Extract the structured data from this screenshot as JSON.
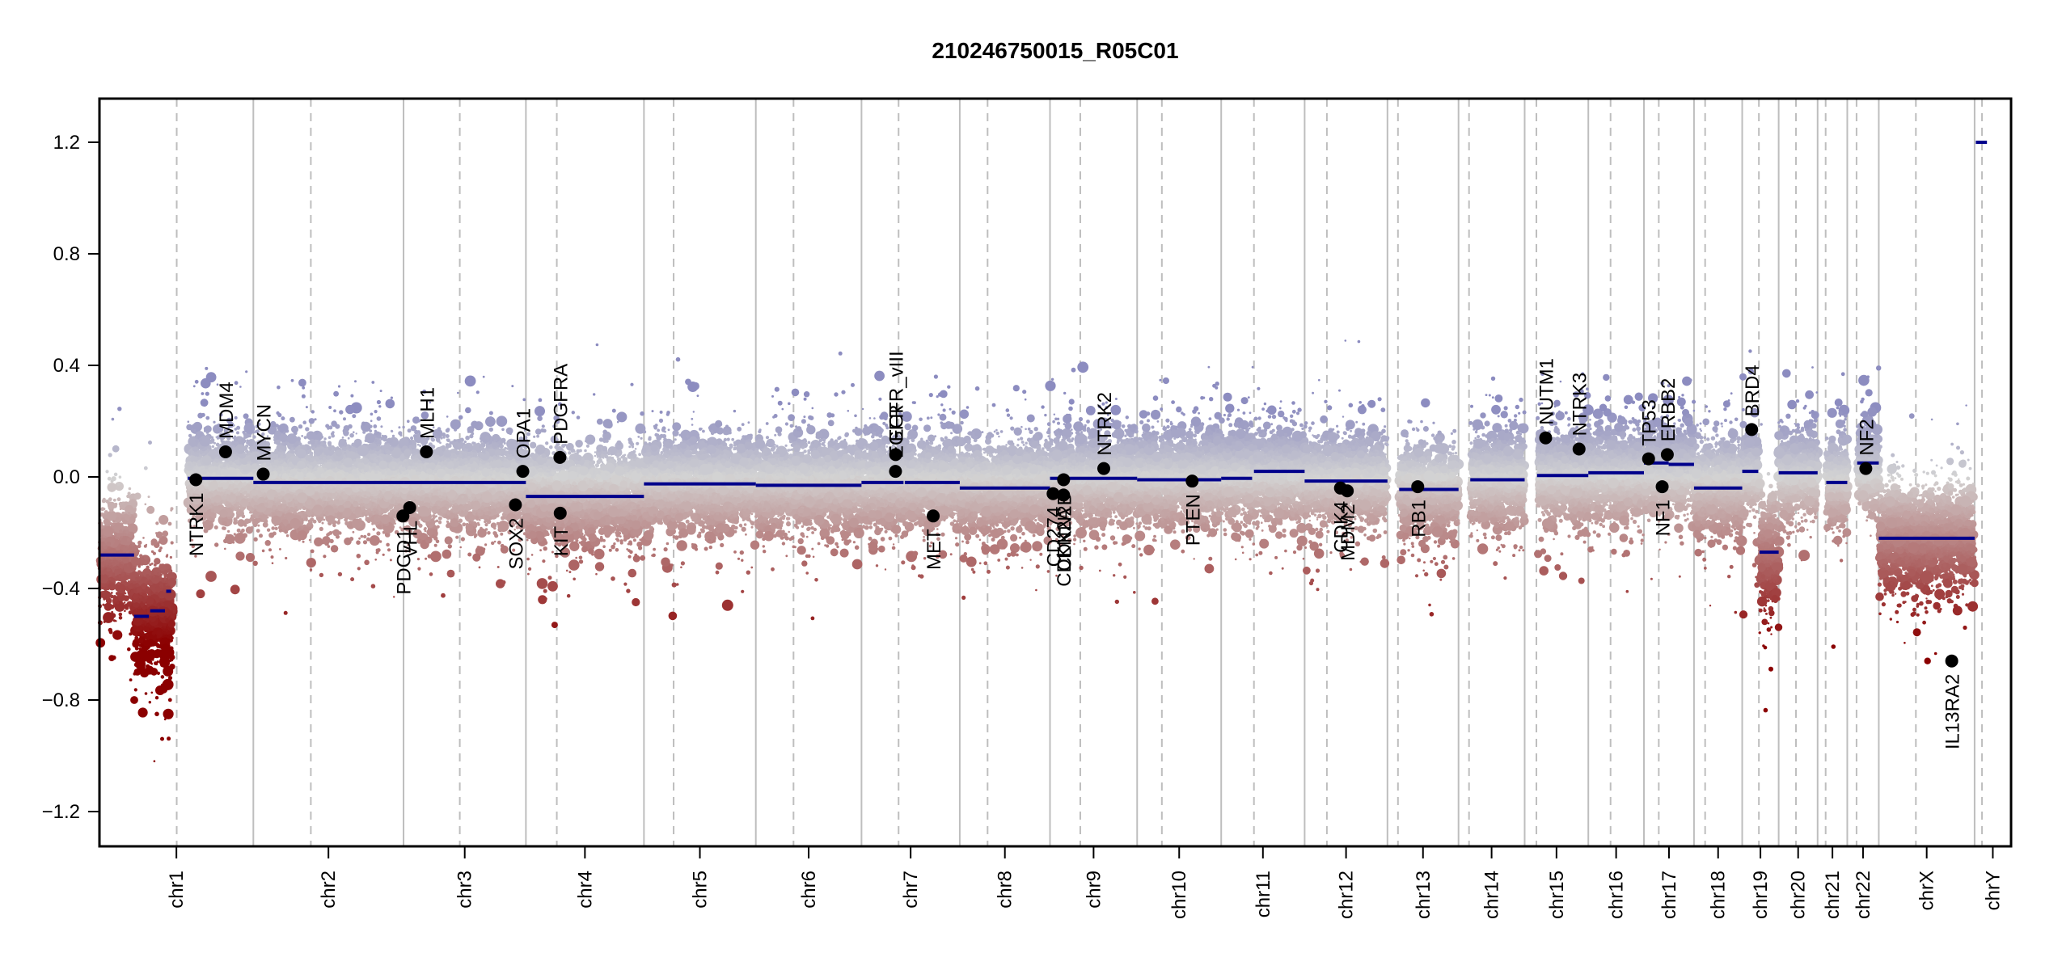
{
  "chart_data": {
    "type": "scatter",
    "title": "210246750015_R05C01",
    "xlabel": "",
    "ylabel": "",
    "ylim": [
      -1.35,
      1.3
    ],
    "yticks": [
      {
        "value": 1.2,
        "label": "1.2"
      },
      {
        "value": 0.8,
        "label": "0.8"
      },
      {
        "value": 0.4,
        "label": "0.4"
      },
      {
        "value": 0.0,
        "label": "0.0"
      },
      {
        "value": -0.4,
        "label": "−0.4"
      },
      {
        "value": -0.8,
        "label": "−0.8"
      },
      {
        "value": -1.2,
        "label": "−1.2"
      }
    ],
    "grid": false,
    "colors": {
      "gain": "#8c8cc0",
      "neutral": "#d3d3d3",
      "loss": "#8b0000",
      "segment": "#00008b",
      "gene": "#000000",
      "chr_boundary": "#bebebe",
      "centromere": "#bebebe"
    },
    "chromosomes": [
      {
        "name": "chr1",
        "size_mb": 249,
        "centromere_mb": 125
      },
      {
        "name": "chr2",
        "size_mb": 243,
        "centromere_mb": 93
      },
      {
        "name": "chr3",
        "size_mb": 198,
        "centromere_mb": 91
      },
      {
        "name": "chr4",
        "size_mb": 191,
        "centromere_mb": 50
      },
      {
        "name": "chr5",
        "size_mb": 181,
        "centromere_mb": 48
      },
      {
        "name": "chr6",
        "size_mb": 171,
        "centromere_mb": 61
      },
      {
        "name": "chr7",
        "size_mb": 159,
        "centromere_mb": 60
      },
      {
        "name": "chr8",
        "size_mb": 146,
        "centromere_mb": 45
      },
      {
        "name": "chr9",
        "size_mb": 141,
        "centromere_mb": 49
      },
      {
        "name": "chr10",
        "size_mb": 136,
        "centromere_mb": 40
      },
      {
        "name": "chr11",
        "size_mb": 135,
        "centromere_mb": 53
      },
      {
        "name": "chr12",
        "size_mb": 134,
        "centromere_mb": 36
      },
      {
        "name": "chr13",
        "size_mb": 115,
        "centromere_mb": 17
      },
      {
        "name": "chr14",
        "size_mb": 107,
        "centromere_mb": 17
      },
      {
        "name": "chr15",
        "size_mb": 103,
        "centromere_mb": 19
      },
      {
        "name": "chr16",
        "size_mb": 90,
        "centromere_mb": 36
      },
      {
        "name": "chr17",
        "size_mb": 81,
        "centromere_mb": 24
      },
      {
        "name": "chr18",
        "size_mb": 78,
        "centromere_mb": 18
      },
      {
        "name": "chr19",
        "size_mb": 59,
        "centromere_mb": 27
      },
      {
        "name": "chr20",
        "size_mb": 63,
        "centromere_mb": 28
      },
      {
        "name": "chr21",
        "size_mb": 48,
        "centromere_mb": 13
      },
      {
        "name": "chr22",
        "size_mb": 51,
        "centromere_mb": 15
      },
      {
        "name": "chrX",
        "size_mb": 155,
        "centromere_mb": 60
      },
      {
        "name": "chrY",
        "size_mb": 59,
        "centromere_mb": 12
      }
    ],
    "segments": [
      {
        "chr": "chr1",
        "start_mb": 0,
        "end_mb": 56,
        "value": -0.28
      },
      {
        "chr": "chr1",
        "start_mb": 56,
        "end_mb": 80,
        "value": -0.5
      },
      {
        "chr": "chr1",
        "start_mb": 82,
        "end_mb": 106,
        "value": -0.48
      },
      {
        "chr": "chr1",
        "start_mb": 108,
        "end_mb": 116,
        "value": -0.41
      },
      {
        "chr": "chr1",
        "start_mb": 143,
        "end_mb": 249,
        "value": -0.005
      },
      {
        "chr": "chr2",
        "start_mb": 0,
        "end_mb": 243,
        "value": -0.02
      },
      {
        "chr": "chr3",
        "start_mb": 0,
        "end_mb": 198,
        "value": -0.02
      },
      {
        "chr": "chr4",
        "start_mb": 0,
        "end_mb": 191,
        "value": -0.07
      },
      {
        "chr": "chr5",
        "start_mb": 0,
        "end_mb": 181,
        "value": -0.025
      },
      {
        "chr": "chr6",
        "start_mb": 0,
        "end_mb": 171,
        "value": -0.03
      },
      {
        "chr": "chr7",
        "start_mb": 0,
        "end_mb": 68,
        "value": -0.02
      },
      {
        "chr": "chr7",
        "start_mb": 70,
        "end_mb": 159,
        "value": -0.02
      },
      {
        "chr": "chr8",
        "start_mb": 0,
        "end_mb": 146,
        "value": -0.04
      },
      {
        "chr": "chr9",
        "start_mb": 0,
        "end_mb": 141,
        "value": -0.005
      },
      {
        "chr": "chr10",
        "start_mb": 0,
        "end_mb": 136,
        "value": -0.01
      },
      {
        "chr": "chr11",
        "start_mb": 0,
        "end_mb": 50,
        "value": -0.005
      },
      {
        "chr": "chr11",
        "start_mb": 53,
        "end_mb": 135,
        "value": 0.02
      },
      {
        "chr": "chr12",
        "start_mb": 0,
        "end_mb": 134,
        "value": -0.015
      },
      {
        "chr": "chr13",
        "start_mb": 19,
        "end_mb": 115,
        "value": -0.045
      },
      {
        "chr": "chr14",
        "start_mb": 19,
        "end_mb": 107,
        "value": -0.01
      },
      {
        "chr": "chr15",
        "start_mb": 20,
        "end_mb": 103,
        "value": 0.005
      },
      {
        "chr": "chr16",
        "start_mb": 0,
        "end_mb": 90,
        "value": 0.015
      },
      {
        "chr": "chr17",
        "start_mb": 0,
        "end_mb": 40,
        "value": 0.05
      },
      {
        "chr": "chr17",
        "start_mb": 40,
        "end_mb": 81,
        "value": 0.045
      },
      {
        "chr": "chr18",
        "start_mb": 0,
        "end_mb": 78,
        "value": -0.04
      },
      {
        "chr": "chr19",
        "start_mb": 0,
        "end_mb": 26,
        "value": 0.02
      },
      {
        "chr": "chr19",
        "start_mb": 28,
        "end_mb": 59,
        "value": -0.27
      },
      {
        "chr": "chr20",
        "start_mb": 0,
        "end_mb": 63,
        "value": 0.015
      },
      {
        "chr": "chr21",
        "start_mb": 14,
        "end_mb": 48,
        "value": -0.02
      },
      {
        "chr": "chr22",
        "start_mb": 16,
        "end_mb": 51,
        "value": 0.05
      },
      {
        "chr": "chrX",
        "start_mb": 0,
        "end_mb": 155,
        "value": -0.22
      },
      {
        "chr": "chrY",
        "start_mb": 2,
        "end_mb": 20,
        "value": 1.2
      }
    ],
    "probe_clouds": [
      {
        "chr": "chr1",
        "start_mb": 0,
        "end_mb": 56,
        "center": -0.28,
        "spread": 0.16
      },
      {
        "chr": "chr1",
        "start_mb": 56,
        "end_mb": 118,
        "center": -0.49,
        "spread": 0.18
      },
      {
        "chr": "chr1",
        "start_mb": 143,
        "end_mb": 249,
        "center": 0.0,
        "spread": 0.13
      },
      {
        "chr": "chr2",
        "start_mb": 0,
        "end_mb": 243,
        "center": -0.02,
        "spread": 0.13
      },
      {
        "chr": "chr3",
        "start_mb": 0,
        "end_mb": 198,
        "center": -0.02,
        "spread": 0.13
      },
      {
        "chr": "chr4",
        "start_mb": 0,
        "end_mb": 191,
        "center": -0.07,
        "spread": 0.13
      },
      {
        "chr": "chr5",
        "start_mb": 0,
        "end_mb": 181,
        "center": -0.025,
        "spread": 0.13
      },
      {
        "chr": "chr6",
        "start_mb": 0,
        "end_mb": 171,
        "center": -0.03,
        "spread": 0.13
      },
      {
        "chr": "chr7",
        "start_mb": 0,
        "end_mb": 159,
        "center": -0.02,
        "spread": 0.13
      },
      {
        "chr": "chr8",
        "start_mb": 0,
        "end_mb": 146,
        "center": -0.04,
        "spread": 0.13
      },
      {
        "chr": "chr9",
        "start_mb": 0,
        "end_mb": 141,
        "center": -0.005,
        "spread": 0.13
      },
      {
        "chr": "chr10",
        "start_mb": 0,
        "end_mb": 136,
        "center": -0.01,
        "spread": 0.13
      },
      {
        "chr": "chr11",
        "start_mb": 0,
        "end_mb": 135,
        "center": 0.01,
        "spread": 0.13
      },
      {
        "chr": "chr12",
        "start_mb": 0,
        "end_mb": 134,
        "center": -0.015,
        "spread": 0.13
      },
      {
        "chr": "chr13",
        "start_mb": 19,
        "end_mb": 115,
        "center": -0.045,
        "spread": 0.13
      },
      {
        "chr": "chr14",
        "start_mb": 19,
        "end_mb": 107,
        "center": -0.01,
        "spread": 0.13
      },
      {
        "chr": "chr15",
        "start_mb": 20,
        "end_mb": 103,
        "center": 0.005,
        "spread": 0.13
      },
      {
        "chr": "chr16",
        "start_mb": 0,
        "end_mb": 90,
        "center": 0.015,
        "spread": 0.13
      },
      {
        "chr": "chr17",
        "start_mb": 0,
        "end_mb": 81,
        "center": 0.045,
        "spread": 0.13
      },
      {
        "chr": "chr18",
        "start_mb": 0,
        "end_mb": 78,
        "center": -0.04,
        "spread": 0.13
      },
      {
        "chr": "chr19",
        "start_mb": 0,
        "end_mb": 26,
        "center": 0.02,
        "spread": 0.13
      },
      {
        "chr": "chr19",
        "start_mb": 28,
        "end_mb": 59,
        "center": -0.27,
        "spread": 0.17
      },
      {
        "chr": "chr20",
        "start_mb": 0,
        "end_mb": 63,
        "center": 0.015,
        "spread": 0.13
      },
      {
        "chr": "chr21",
        "start_mb": 14,
        "end_mb": 48,
        "center": -0.02,
        "spread": 0.13
      },
      {
        "chr": "chr22",
        "start_mb": 16,
        "end_mb": 51,
        "center": 0.05,
        "spread": 0.13
      },
      {
        "chr": "chrX",
        "start_mb": 0,
        "end_mb": 155,
        "center": -0.22,
        "spread": 0.15
      }
    ],
    "genes": [
      {
        "name": "NTRK1",
        "chr": "chr1",
        "pos_mb": 156,
        "value": -0.01,
        "label_side": "below"
      },
      {
        "name": "MDM4",
        "chr": "chr1",
        "pos_mb": 204,
        "value": 0.09,
        "label_side": "above"
      },
      {
        "name": "MYCN",
        "chr": "chr2",
        "pos_mb": 16,
        "value": 0.01,
        "label_side": "above"
      },
      {
        "name": "PDCD1",
        "chr": "chr2",
        "pos_mb": 242,
        "value": -0.14,
        "label_side": "below"
      },
      {
        "name": "VHL",
        "chr": "chr3",
        "pos_mb": 10,
        "value": -0.11,
        "label_side": "below"
      },
      {
        "name": "MLH1",
        "chr": "chr3",
        "pos_mb": 37,
        "value": 0.09,
        "label_side": "above"
      },
      {
        "name": "SOX2",
        "chr": "chr3",
        "pos_mb": 181,
        "value": -0.1,
        "label_side": "below"
      },
      {
        "name": "OPA1",
        "chr": "chr3",
        "pos_mb": 193,
        "value": 0.02,
        "label_side": "above"
      },
      {
        "name": "PDGFRA",
        "chr": "chr4",
        "pos_mb": 55,
        "value": 0.07,
        "label_side": "above"
      },
      {
        "name": "KIT",
        "chr": "chr4",
        "pos_mb": 55.5,
        "value": -0.13,
        "label_side": "below"
      },
      {
        "name": "EGFR",
        "chr": "chr7",
        "pos_mb": 55,
        "value": 0.02,
        "label_side": "above"
      },
      {
        "name": "EGFR_vIII",
        "chr": "chr7",
        "pos_mb": 55.2,
        "value": 0.08,
        "label_side": "above"
      },
      {
        "name": "MET",
        "chr": "chr7",
        "pos_mb": 116,
        "value": -0.14,
        "label_side": "below"
      },
      {
        "name": "CD274",
        "chr": "chr9",
        "pos_mb": 5,
        "value": -0.06,
        "label_side": "below"
      },
      {
        "name": "CDKN2A",
        "chr": "chr9",
        "pos_mb": 21.9,
        "value": -0.065,
        "label_side": "below"
      },
      {
        "name": "CDKN2B",
        "chr": "chr9",
        "pos_mb": 22.0,
        "value": -0.01,
        "label_side": "below"
      },
      {
        "name": "NTRK2",
        "chr": "chr9",
        "pos_mb": 87,
        "value": 0.03,
        "label_side": "above"
      },
      {
        "name": "PTEN",
        "chr": "chr10",
        "pos_mb": 89,
        "value": -0.015,
        "label_side": "below"
      },
      {
        "name": "CDK4",
        "chr": "chr12",
        "pos_mb": 58,
        "value": -0.04,
        "label_side": "below"
      },
      {
        "name": "MDM2",
        "chr": "chr12",
        "pos_mb": 69,
        "value": -0.05,
        "label_side": "below"
      },
      {
        "name": "RB1",
        "chr": "chr13",
        "pos_mb": 49,
        "value": -0.035,
        "label_side": "below"
      },
      {
        "name": "NUTM1",
        "chr": "chr15",
        "pos_mb": 34,
        "value": 0.14,
        "label_side": "above"
      },
      {
        "name": "NTRK3",
        "chr": "chr15",
        "pos_mb": 88,
        "value": 0.1,
        "label_side": "above"
      },
      {
        "name": "TP53",
        "chr": "chr17",
        "pos_mb": 7.5,
        "value": 0.065,
        "label_side": "above"
      },
      {
        "name": "NF1",
        "chr": "chr17",
        "pos_mb": 29.5,
        "value": -0.035,
        "label_side": "below"
      },
      {
        "name": "ERBB2",
        "chr": "chr17",
        "pos_mb": 37.8,
        "value": 0.08,
        "label_side": "above"
      },
      {
        "name": "BRD4",
        "chr": "chr19",
        "pos_mb": 15.3,
        "value": 0.17,
        "label_side": "above"
      },
      {
        "name": "NF2",
        "chr": "chr22",
        "pos_mb": 30,
        "value": 0.03,
        "label_side": "above"
      },
      {
        "name": "IL13RA2",
        "chrX": true,
        "chr": "chrX",
        "pos_mb": 118,
        "value": -0.66,
        "label_side": "below"
      }
    ]
  }
}
